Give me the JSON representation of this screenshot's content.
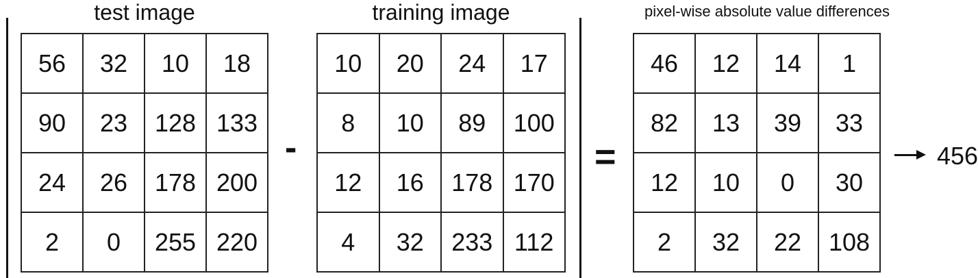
{
  "titles": {
    "test": "test image",
    "training": "training image",
    "diff": "pixel-wise absolute value differences"
  },
  "operators": {
    "minus": "-",
    "equals": "="
  },
  "matrices": {
    "test": [
      [
        56,
        32,
        10,
        18
      ],
      [
        90,
        23,
        128,
        133
      ],
      [
        24,
        26,
        178,
        200
      ],
      [
        2,
        0,
        255,
        220
      ]
    ],
    "training": [
      [
        10,
        20,
        24,
        17
      ],
      [
        8,
        10,
        89,
        100
      ],
      [
        12,
        16,
        178,
        170
      ],
      [
        4,
        32,
        233,
        112
      ]
    ],
    "diff": [
      [
        46,
        12,
        14,
        1
      ],
      [
        82,
        13,
        39,
        33
      ],
      [
        12,
        10,
        0,
        30
      ],
      [
        2,
        32,
        22,
        108
      ]
    ]
  },
  "result": "456"
}
